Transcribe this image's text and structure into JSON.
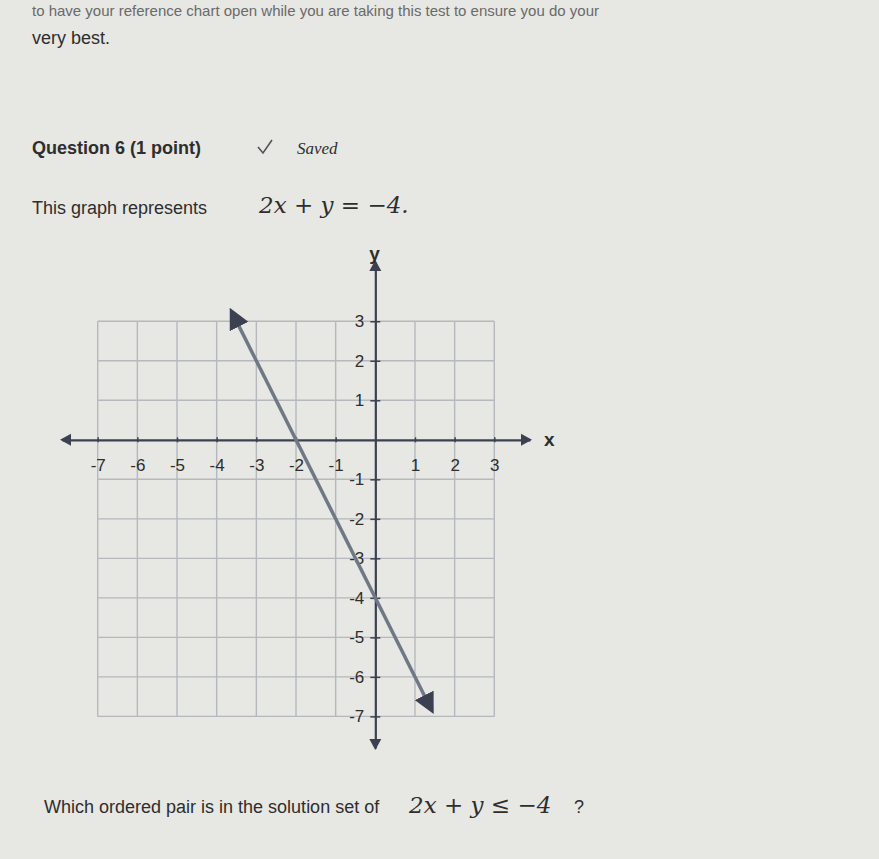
{
  "page": {
    "intro": "to have your reference chart open while you are taking this test to ensure you do your",
    "intro_end": "very best.",
    "question": "Question 6 (1 point)",
    "status": "Saved",
    "prompt": "This graph represents",
    "equation": "2x + y = −4.",
    "footer": "Which ordered pair is in the solution set of",
    "inequality": "2x + y ≤ −4",
    "footer_end": "?"
  },
  "chart_data": {
    "type": "line",
    "xlabel": "x",
    "ylabel": "y",
    "x": [
      -3.6,
      1.4
    ],
    "values": [
      3.2,
      -6.8
    ],
    "color": "#6f7884",
    "marker": "arrow",
    "xlim": [
      -7.9,
      3.9
    ],
    "ylim": [
      -7.8,
      4.5
    ],
    "xticks": [
      -7,
      -6,
      -5,
      -4,
      -3,
      -2,
      -1,
      1,
      2,
      3
    ],
    "yticks": [
      -7,
      -6,
      -5,
      -4,
      -3,
      -2,
      -1,
      1,
      2,
      3
    ],
    "grid": true
  }
}
